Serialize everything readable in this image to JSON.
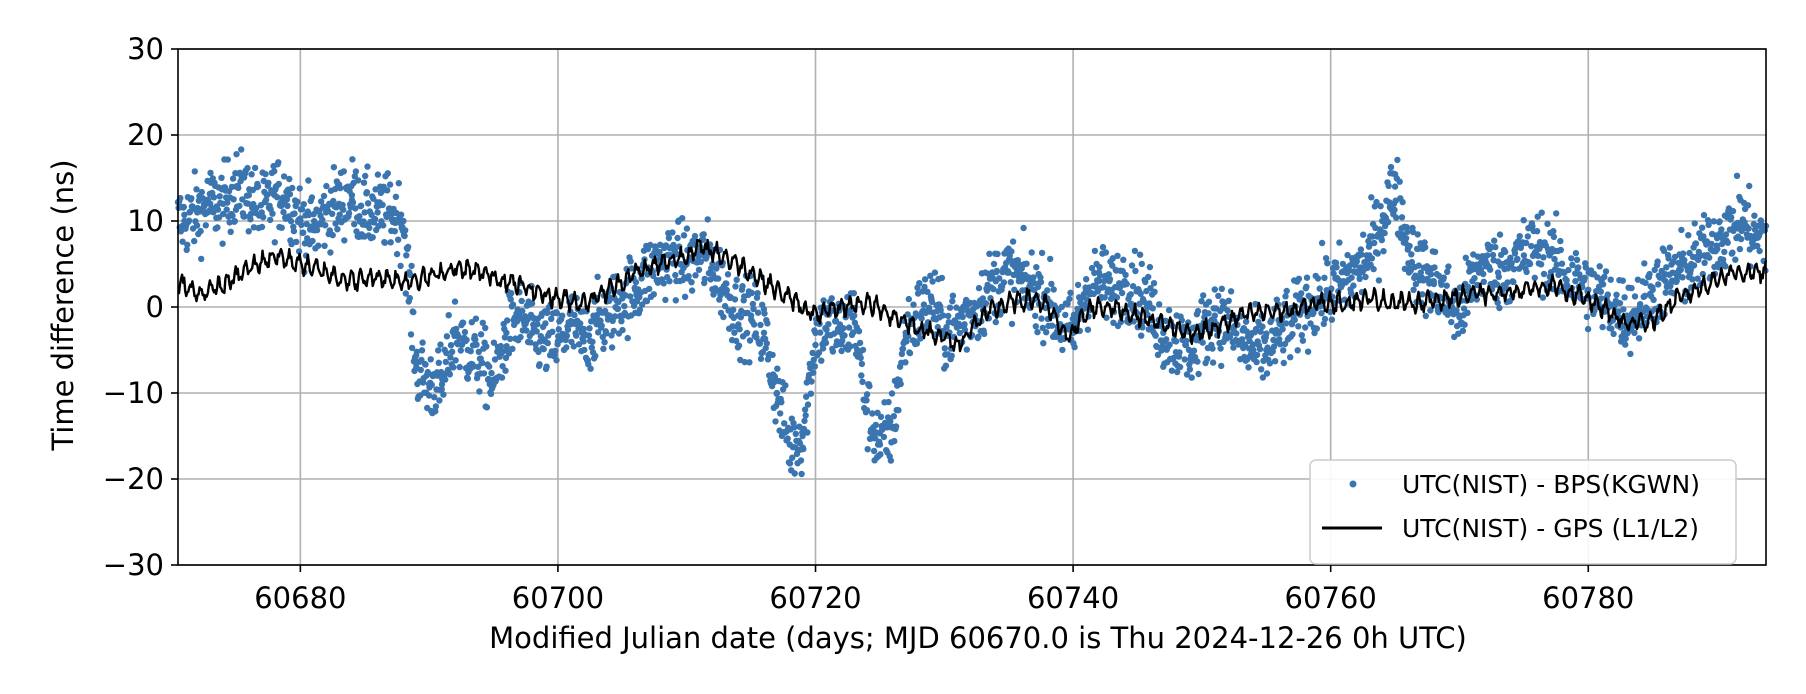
{
  "chart_data": {
    "type": "scatter",
    "xlabel": "Modified Julian date (days; MJD 60670.0 is Thu 2024-12-26 0h UTC)",
    "ylabel": "Time difference (ns)",
    "xlim": [
      60670.5,
      60793.8
    ],
    "ylim": [
      -30,
      30
    ],
    "x_ticks": [
      60680,
      60700,
      60720,
      60740,
      60760,
      60780
    ],
    "y_ticks": [
      -30,
      -20,
      -10,
      0,
      10,
      20,
      30
    ],
    "y_tick_labels": [
      "−30",
      "−20",
      "−10",
      "0",
      "10",
      "20",
      "30"
    ],
    "grid": true,
    "legend_position": "lower-right",
    "series": [
      {
        "name": "UTC(NIST) - BPS(KGWN)",
        "kind": "scatter",
        "color": "#3a75b0",
        "points": [
          [
            60671,
            10
          ],
          [
            60672,
            11
          ],
          [
            60673,
            12
          ],
          [
            60674,
            12
          ],
          [
            60675,
            14
          ],
          [
            60676,
            13
          ],
          [
            60677,
            11
          ],
          [
            60678,
            13
          ],
          [
            60679,
            13
          ],
          [
            60680,
            10
          ],
          [
            60681,
            9
          ],
          [
            60682,
            11
          ],
          [
            60683,
            12
          ],
          [
            60684,
            13
          ],
          [
            60685,
            11
          ],
          [
            60686,
            11
          ],
          [
            60687,
            11
          ],
          [
            60688,
            10
          ],
          [
            60689,
            -7
          ],
          [
            60690,
            -9
          ],
          [
            60691,
            -9
          ],
          [
            60692,
            -3
          ],
          [
            60693,
            -5
          ],
          [
            60694,
            -6
          ],
          [
            60695,
            -9
          ],
          [
            60696,
            -3
          ],
          [
            60697,
            -1
          ],
          [
            60698,
            -3
          ],
          [
            60699,
            -4
          ],
          [
            60700,
            -4
          ],
          [
            60701,
            -2
          ],
          [
            60702,
            -4
          ],
          [
            60703,
            -2
          ],
          [
            60704,
            -1
          ],
          [
            60705,
            1
          ],
          [
            60706,
            2
          ],
          [
            60707,
            4
          ],
          [
            60708,
            5
          ],
          [
            60709,
            6
          ],
          [
            60710,
            5
          ],
          [
            60711,
            6
          ],
          [
            60712,
            5
          ],
          [
            60713,
            2
          ],
          [
            60714,
            -1
          ],
          [
            60715,
            -1
          ],
          [
            60716,
            -3
          ],
          [
            60717,
            -10
          ],
          [
            60718,
            -16
          ],
          [
            60719,
            -15
          ],
          [
            60720,
            -3
          ],
          [
            60721,
            -2
          ],
          [
            60722,
            -3
          ],
          [
            60723,
            -1
          ],
          [
            60724,
            -12
          ],
          [
            60725,
            -16
          ],
          [
            60726,
            -14
          ],
          [
            60727,
            -3
          ],
          [
            60728,
            -1
          ],
          [
            60729,
            1
          ],
          [
            60730,
            -3
          ],
          [
            60731,
            -2
          ],
          [
            60732,
            -1
          ],
          [
            60733,
            1
          ],
          [
            60734,
            3
          ],
          [
            60735,
            4
          ],
          [
            60736,
            3
          ],
          [
            60737,
            2
          ],
          [
            60738,
            1
          ],
          [
            60739,
            -2
          ],
          [
            60740,
            -3
          ],
          [
            60741,
            2
          ],
          [
            60742,
            3
          ],
          [
            60743,
            2
          ],
          [
            60744,
            3
          ],
          [
            60745,
            2
          ],
          [
            60746,
            0
          ],
          [
            60747,
            -3
          ],
          [
            60748,
            -4
          ],
          [
            60749,
            -5
          ],
          [
            60750,
            -3
          ],
          [
            60751,
            -1
          ],
          [
            60752,
            -2
          ],
          [
            60753,
            -4
          ],
          [
            60754,
            -5
          ],
          [
            60755,
            -5
          ],
          [
            60756,
            -3
          ],
          [
            60757,
            -2
          ],
          [
            60758,
            0
          ],
          [
            60759,
            1
          ],
          [
            60760,
            2
          ],
          [
            60761,
            3
          ],
          [
            60762,
            4
          ],
          [
            60763,
            6
          ],
          [
            60764,
            10
          ],
          [
            60765,
            14
          ],
          [
            60766,
            7
          ],
          [
            60767,
            4
          ],
          [
            60768,
            3
          ],
          [
            60769,
            1
          ],
          [
            60770,
            -1
          ],
          [
            60771,
            3
          ],
          [
            60772,
            5
          ],
          [
            60773,
            4
          ],
          [
            60774,
            5
          ],
          [
            60775,
            6
          ],
          [
            60776,
            7
          ],
          [
            60777,
            6
          ],
          [
            60778,
            4
          ],
          [
            60779,
            3
          ],
          [
            60780,
            2
          ],
          [
            60781,
            1
          ],
          [
            60782,
            0
          ],
          [
            60783,
            -1
          ],
          [
            60784,
            0
          ],
          [
            60785,
            2
          ],
          [
            60786,
            3
          ],
          [
            60787,
            4
          ],
          [
            60788,
            5
          ],
          [
            60789,
            6
          ],
          [
            60790,
            8
          ],
          [
            60791,
            9
          ],
          [
            60792,
            10
          ],
          [
            60793,
            8
          ]
        ]
      },
      {
        "name": "UTC(NIST) - GPS (L1/L2)",
        "kind": "line",
        "color": "#000000",
        "points": [
          [
            60670.5,
            3
          ],
          [
            60672,
            1.5
          ],
          [
            60674,
            2.5
          ],
          [
            60676,
            4.5
          ],
          [
            60678,
            6
          ],
          [
            60680,
            5
          ],
          [
            60682,
            4
          ],
          [
            60684,
            3
          ],
          [
            60686,
            3.5
          ],
          [
            60688,
            3
          ],
          [
            60690,
            3.5
          ],
          [
            60692,
            4.5
          ],
          [
            60694,
            4
          ],
          [
            60696,
            3
          ],
          [
            60698,
            2
          ],
          [
            60700,
            1
          ],
          [
            60702,
            0.5
          ],
          [
            60704,
            2
          ],
          [
            60706,
            4
          ],
          [
            60708,
            5
          ],
          [
            60710,
            6
          ],
          [
            60711,
            7
          ],
          [
            60712,
            6.5
          ],
          [
            60714,
            5
          ],
          [
            60716,
            3
          ],
          [
            60718,
            1
          ],
          [
            60720,
            -1
          ],
          [
            60722,
            0
          ],
          [
            60724,
            0.5
          ],
          [
            60726,
            -1
          ],
          [
            60728,
            -2.5
          ],
          [
            60730,
            -3.5
          ],
          [
            60731,
            -4.5
          ],
          [
            60733,
            -1
          ],
          [
            60735,
            0.5
          ],
          [
            60737,
            1
          ],
          [
            60738,
            0
          ],
          [
            60739.5,
            -3.5
          ],
          [
            60741.5,
            0
          ],
          [
            60743,
            0
          ],
          [
            60745,
            -1
          ],
          [
            60747,
            -2
          ],
          [
            60749,
            -3
          ],
          [
            60751,
            -2.5
          ],
          [
            60753,
            -1
          ],
          [
            60755,
            -0.5
          ],
          [
            60757,
            -0.5
          ],
          [
            60759,
            0.5
          ],
          [
            60761,
            0.5
          ],
          [
            60763,
            1
          ],
          [
            60765,
            0.5
          ],
          [
            60767,
            0.5
          ],
          [
            60769,
            1
          ],
          [
            60771,
            1.5
          ],
          [
            60773,
            1.5
          ],
          [
            60775,
            2
          ],
          [
            60777,
            2.5
          ],
          [
            60779,
            1.5
          ],
          [
            60781,
            0
          ],
          [
            60783,
            -2
          ],
          [
            60785,
            -1.5
          ],
          [
            60787,
            1
          ],
          [
            60789,
            2.5
          ],
          [
            60791,
            4
          ],
          [
            60793.8,
            4
          ]
        ]
      }
    ]
  }
}
